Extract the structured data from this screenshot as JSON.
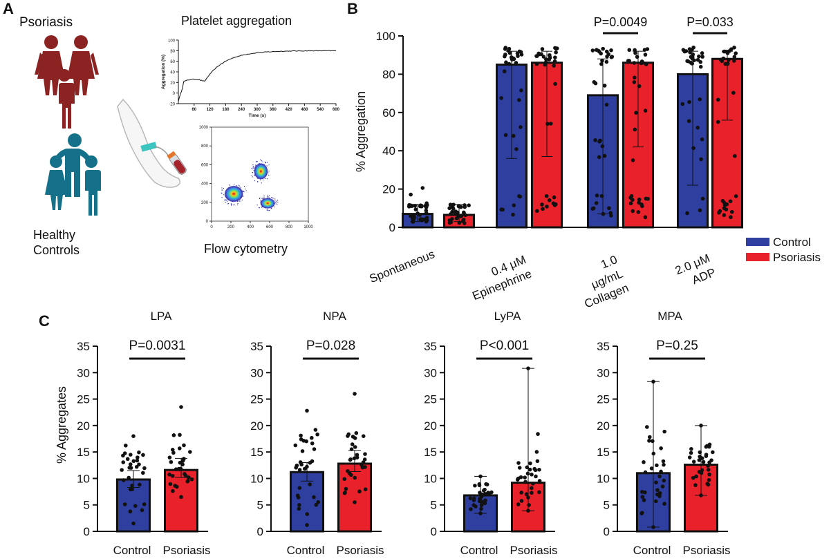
{
  "panel_labels": {
    "a": "A",
    "b": "B",
    "c": "C"
  },
  "panel_a": {
    "psoriasis_label": "Psoriasis",
    "healthy_label_line1": "Healthy",
    "healthy_label_line2": "Controls",
    "platelet_title": "Platelet aggregation",
    "flow_title": "Flow cytometry",
    "psoriasis_color": "#8b2323",
    "healthy_color": "#15718a",
    "trace_chart": {
      "type": "line",
      "ylabel": "Aggregation (%)",
      "xlabel": "Time (s)",
      "yticks": [
        -20,
        0,
        20,
        40,
        60,
        80,
        100
      ],
      "xticks": [
        60,
        120,
        180,
        240,
        300,
        360,
        420,
        480,
        540,
        600
      ],
      "xlim": [
        0,
        600
      ],
      "ylim": [
        -20,
        100
      ]
    },
    "flow_chart": {
      "type": "scatter",
      "xticks": [
        0,
        200,
        400,
        600,
        800,
        1000
      ],
      "yticks": [
        0,
        200,
        400,
        600,
        800,
        1000
      ],
      "xlim": [
        0,
        1000
      ],
      "ylim": [
        0,
        1000
      ]
    }
  },
  "chart_data": [
    {
      "id": "B",
      "type": "bar",
      "ylabel": "% Aggregation",
      "ylim": [
        0,
        100
      ],
      "yticks": [
        0,
        20,
        40,
        60,
        80,
        100
      ],
      "categories": [
        [
          "Spontaneous"
        ],
        [
          "0.4 μM",
          "Epinephrine"
        ],
        [
          "1.0",
          "μg/mL",
          "Collagen"
        ],
        [
          "2.0 μM",
          "ADP"
        ]
      ],
      "series": [
        {
          "name": "Control",
          "color": "#2e3fa0",
          "values": [
            7,
            85,
            69,
            80
          ],
          "err_low": [
            3,
            36,
            7,
            22
          ],
          "err_high": [
            12,
            92,
            88,
            92
          ]
        },
        {
          "name": "Psoriasis",
          "color": "#e8212a",
          "values": [
            6.5,
            86,
            86,
            88
          ],
          "err_low": [
            3,
            37,
            42,
            56
          ],
          "err_high": [
            12,
            92,
            92,
            92
          ]
        }
      ],
      "comparisons": [
        {
          "category": 2,
          "label": "P=0.0049"
        },
        {
          "category": 3,
          "label": "P=0.033"
        }
      ],
      "legend": [
        "Control",
        "Psoriasis"
      ]
    },
    {
      "id": "LPA",
      "type": "bar",
      "title": "LPA",
      "ylabel": "% Aggregates",
      "ylim": [
        0,
        35
      ],
      "yticks": [
        0,
        5,
        10,
        15,
        20,
        25,
        30,
        35
      ],
      "categories": [
        "Control",
        "Psoriasis"
      ],
      "values": [
        9.8,
        11.6
      ],
      "err_low": [
        8.3,
        10.2
      ],
      "err_high": [
        11.5,
        13.8
      ],
      "colors": [
        "#2e3fa0",
        "#e8212a"
      ],
      "p_value": "P=0.0031"
    },
    {
      "id": "NPA",
      "type": "bar",
      "title": "NPA",
      "ylabel": "",
      "ylim": [
        0,
        35
      ],
      "yticks": [
        0,
        5,
        10,
        15,
        20,
        25,
        30,
        35
      ],
      "categories": [
        "Control",
        "Psoriasis"
      ],
      "values": [
        11.2,
        12.8
      ],
      "err_low": [
        9.5,
        11.3
      ],
      "err_high": [
        13.0,
        15.3
      ],
      "colors": [
        "#2e3fa0",
        "#e8212a"
      ],
      "p_value": "P=0.028"
    },
    {
      "id": "LyPA",
      "type": "bar",
      "title": "LyPA",
      "ylabel": "",
      "ylim": [
        0,
        35
      ],
      "yticks": [
        0,
        5,
        10,
        15,
        20,
        25,
        30,
        35
      ],
      "categories": [
        "Control",
        "Psoriasis"
      ],
      "values": [
        6.8,
        9.2
      ],
      "err_low": [
        3.4,
        3.9
      ],
      "err_high": [
        10.4,
        30.8
      ],
      "colors": [
        "#2e3fa0",
        "#e8212a"
      ],
      "p_value": "P<0.001"
    },
    {
      "id": "MPA",
      "type": "bar",
      "title": "MPA",
      "ylabel": "",
      "ylim": [
        0,
        35
      ],
      "yticks": [
        0,
        5,
        10,
        15,
        20,
        25,
        30,
        35
      ],
      "categories": [
        "Control",
        "Psoriasis"
      ],
      "values": [
        11.0,
        12.6
      ],
      "err_low": [
        0.8,
        6.8
      ],
      "err_high": [
        28.3,
        20.0
      ],
      "colors": [
        "#2e3fa0",
        "#e8212a"
      ],
      "p_value": "P=0.25"
    }
  ]
}
